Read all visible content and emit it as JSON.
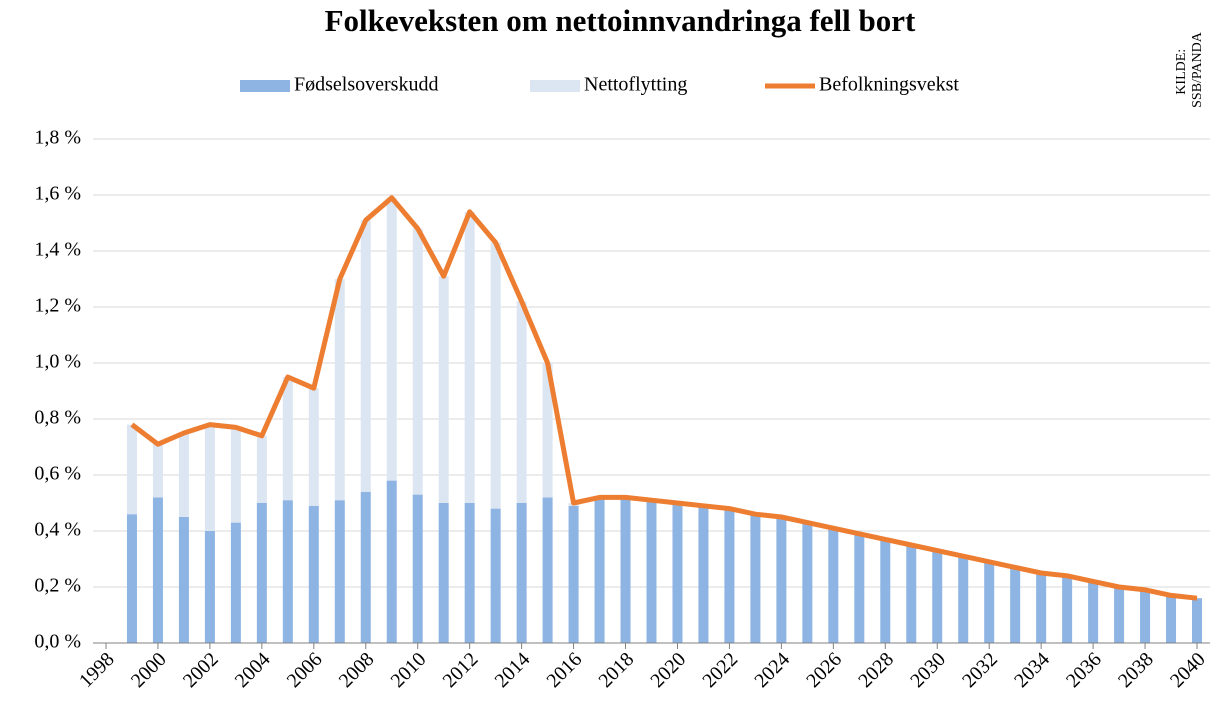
{
  "chart_data": {
    "type": "bar_line",
    "title": "Folkeveksten om nettoinnvandringa fell bort",
    "source": [
      "KILDE:",
      "SSB/PANDA"
    ],
    "categories": [
      "1998",
      null,
      "2000",
      null,
      "2002",
      null,
      "2004",
      null,
      "2006",
      null,
      "2008",
      null,
      "2010",
      null,
      "2012",
      null,
      "2014",
      null,
      "2016",
      null,
      "2018",
      null,
      "2020",
      null,
      "2022",
      null,
      "2024",
      null,
      "2026",
      null,
      "2028",
      null,
      "2030",
      null,
      "2032",
      null,
      "2034",
      null,
      "2036",
      null,
      "2038",
      null,
      "2040"
    ],
    "series": [
      {
        "name": "Fødselsoverskudd",
        "kind": "bar",
        "color": "#8db4e2",
        "values": [
          null,
          0.46,
          0.52,
          0.45,
          0.4,
          0.43,
          0.5,
          0.51,
          0.49,
          0.51,
          0.54,
          0.58,
          0.53,
          0.5,
          0.5,
          0.48,
          0.5,
          0.52,
          0.49,
          0.52,
          0.52,
          0.51,
          0.5,
          0.49,
          0.48,
          0.46,
          0.45,
          0.43,
          0.41,
          0.39,
          0.37,
          0.35,
          0.33,
          0.31,
          0.29,
          0.27,
          0.25,
          0.24,
          0.22,
          0.2,
          0.19,
          0.17,
          0.16
        ]
      },
      {
        "name": "Nettoflytting",
        "kind": "bar",
        "color": "#dce6f2",
        "values": [
          null,
          0.32,
          0.19,
          0.3,
          0.38,
          0.34,
          0.24,
          0.44,
          0.42,
          0.79,
          0.97,
          1.01,
          0.95,
          0.81,
          1.04,
          0.95,
          0.72,
          0.48,
          0.01,
          0,
          0,
          0,
          0,
          0,
          0,
          0,
          0,
          0,
          0,
          0,
          0,
          0,
          0,
          0,
          0,
          0,
          0,
          0,
          0,
          0,
          0,
          0,
          0
        ]
      },
      {
        "name": "Befolkningsvekst",
        "kind": "line",
        "color": "#ed7d31",
        "values": [
          null,
          0.78,
          0.71,
          0.75,
          0.78,
          0.77,
          0.74,
          0.95,
          0.91,
          1.3,
          1.51,
          1.59,
          1.48,
          1.31,
          1.54,
          1.43,
          1.22,
          1.0,
          0.5,
          0.52,
          0.52,
          0.51,
          0.5,
          0.49,
          0.48,
          0.46,
          0.45,
          0.43,
          0.41,
          0.39,
          0.37,
          0.35,
          0.33,
          0.31,
          0.29,
          0.27,
          0.25,
          0.24,
          0.22,
          0.2,
          0.19,
          0.17,
          0.16
        ]
      }
    ],
    "ylim": [
      0,
      1.8
    ],
    "yticks": [
      {
        "value": 0,
        "label": "0,0 %"
      },
      {
        "value": 0.2,
        "label": "0,2 %"
      },
      {
        "value": 0.4,
        "label": "0,4 %"
      },
      {
        "value": 0.6,
        "label": "0,6 %"
      },
      {
        "value": 0.8,
        "label": "0,8 %"
      },
      {
        "value": 1.0,
        "label": "1,0 %"
      },
      {
        "value": 1.2,
        "label": "1,2 %"
      },
      {
        "value": 1.4,
        "label": "1,4 %"
      },
      {
        "value": 1.6,
        "label": "1,6 %"
      },
      {
        "value": 1.8,
        "label": "1,8 %"
      }
    ],
    "grid": true,
    "legend": "top"
  }
}
